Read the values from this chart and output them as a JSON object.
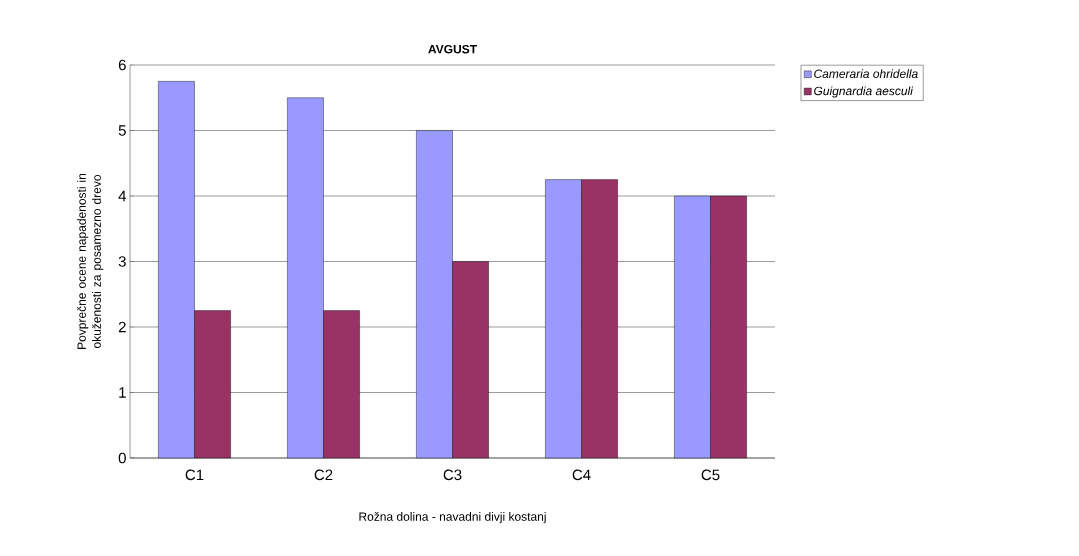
{
  "chart_data": {
    "type": "bar",
    "title": "AVGUST",
    "xlabel": "Rožna dolina - navadni divji kostanj",
    "ylabel": "Povprečne ocene napadenosti in okuženosti za posamezno drevo",
    "categories": [
      "C1",
      "C2",
      "C3",
      "C4",
      "C5"
    ],
    "series": [
      {
        "name": "Cameraria ohridella",
        "color": "#9999ff",
        "values": [
          5.75,
          5.5,
          5.0,
          4.25,
          4.0
        ]
      },
      {
        "name": "Guignardia aesculi",
        "color": "#993366",
        "values": [
          2.25,
          2.25,
          3.0,
          4.25,
          4.0
        ]
      }
    ],
    "ylim": [
      0,
      6
    ],
    "yticks": [
      0,
      1,
      2,
      3,
      4,
      5,
      6
    ],
    "grid": "y",
    "legend": "top right"
  }
}
